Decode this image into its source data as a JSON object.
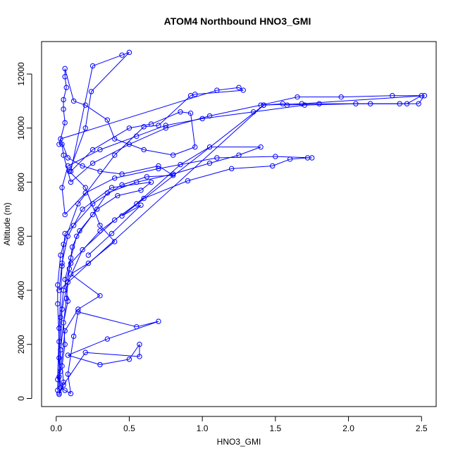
{
  "chart_data": {
    "type": "scatter",
    "title": "ATOM4 Northbound HNO3_GMI",
    "xlabel": "HNO3_GMI",
    "ylabel": "Altitude (m)",
    "xlim": [
      -0.1,
      2.6
    ],
    "ylim": [
      -300,
      13200
    ],
    "xticks": [
      0.0,
      0.5,
      1.0,
      1.5,
      2.0,
      2.5
    ],
    "xtick_labels": [
      "0.0",
      "0.5",
      "1.0",
      "1.5",
      "2.0",
      "2.5"
    ],
    "yticks": [
      0,
      2000,
      4000,
      6000,
      8000,
      10000,
      12000
    ],
    "ytick_labels": [
      "0",
      "2000",
      "4000",
      "6000",
      "8000",
      "10000",
      "12000"
    ],
    "grid": false,
    "marker": "open-circle",
    "line_style": "connected",
    "series": [
      {
        "color": "#0000ff",
        "points": [
          [
            0.02,
            200
          ],
          [
            0.05,
            600
          ],
          [
            0.04,
            1200
          ],
          [
            0.06,
            2000
          ],
          [
            0.05,
            2800
          ],
          [
            0.08,
            3600
          ],
          [
            0.06,
            4400
          ],
          [
            0.1,
            5200
          ],
          [
            0.14,
            6000
          ],
          [
            0.25,
            6800
          ],
          [
            0.35,
            7600
          ],
          [
            0.55,
            8000
          ],
          [
            0.8,
            8300
          ],
          [
            1.05,
            8700
          ],
          [
            1.25,
            9000
          ],
          [
            1.4,
            9300
          ],
          [
            1.05,
            9300
          ],
          [
            0.85,
            8650
          ],
          [
            0.55,
            7200
          ],
          [
            0.3,
            6200
          ],
          [
            0.1,
            5000
          ],
          [
            0.05,
            4000
          ],
          [
            0.03,
            3000
          ],
          [
            0.02,
            1500
          ],
          [
            0.03,
            400
          ],
          [
            0.06,
            300
          ],
          [
            0.1,
            180
          ],
          [
            0.08,
            900
          ],
          [
            0.12,
            2300
          ],
          [
            0.15,
            3200
          ],
          [
            0.55,
            2650
          ],
          [
            0.7,
            2850
          ],
          [
            0.35,
            2200
          ],
          [
            0.08,
            1600
          ],
          [
            0.3,
            1250
          ],
          [
            0.5,
            1450
          ],
          [
            0.57,
            2000
          ],
          [
            0.57,
            1550
          ],
          [
            0.2,
            1700
          ],
          [
            0.05,
            500
          ],
          [
            0.02,
            150
          ],
          [
            0.04,
            3300
          ],
          [
            0.08,
            4300
          ],
          [
            0.18,
            5500
          ],
          [
            0.4,
            6600
          ],
          [
            0.6,
            7400
          ],
          [
            0.9,
            8050
          ],
          [
            1.2,
            8500
          ],
          [
            1.48,
            8600
          ],
          [
            1.6,
            8850
          ],
          [
            1.72,
            8900
          ],
          [
            1.75,
            8900
          ],
          [
            1.5,
            8950
          ],
          [
            1.1,
            8900
          ],
          [
            0.7,
            8500
          ],
          [
            0.4,
            8150
          ],
          [
            0.2,
            7600
          ],
          [
            0.06,
            6800
          ],
          [
            0.04,
            7800
          ],
          [
            0.08,
            8600
          ],
          [
            0.3,
            9200
          ],
          [
            0.55,
            9700
          ],
          [
            0.75,
            10100
          ],
          [
            1.0,
            10350
          ],
          [
            1.35,
            10600
          ],
          [
            1.7,
            10850
          ],
          [
            2.05,
            10900
          ],
          [
            2.4,
            10900
          ],
          [
            2.5,
            11200
          ],
          [
            2.3,
            11200
          ],
          [
            1.95,
            11150
          ],
          [
            1.65,
            11150
          ],
          [
            1.4,
            10850
          ],
          [
            1.05,
            10450
          ],
          [
            0.75,
            10000
          ],
          [
            0.5,
            9400
          ],
          [
            0.25,
            8700
          ],
          [
            0.1,
            8000
          ],
          [
            0.05,
            9000
          ],
          [
            0.04,
            9400
          ],
          [
            0.02,
            9400
          ],
          [
            0.06,
            10200
          ],
          [
            0.05,
            10700
          ],
          [
            0.05,
            11050
          ],
          [
            0.07,
            11500
          ],
          [
            0.06,
            11900
          ],
          [
            0.06,
            12200
          ],
          [
            0.12,
            11000
          ],
          [
            0.2,
            10850
          ],
          [
            0.35,
            10300
          ],
          [
            0.4,
            9600
          ],
          [
            0.6,
            9200
          ],
          [
            0.8,
            9000
          ],
          [
            0.95,
            9300
          ],
          [
            0.92,
            10550
          ],
          [
            0.85,
            10600
          ],
          [
            0.65,
            10150
          ],
          [
            0.5,
            10000
          ],
          [
            0.25,
            9200
          ],
          [
            0.1,
            8400
          ],
          [
            0.25,
            12300
          ],
          [
            0.45,
            12700
          ],
          [
            0.5,
            12800
          ],
          [
            0.24,
            11350
          ],
          [
            0.2,
            10000
          ],
          [
            0.09,
            8400
          ],
          [
            0.2,
            7800
          ],
          [
            0.3,
            6400
          ],
          [
            0.4,
            5800
          ],
          [
            0.22,
            5000
          ],
          [
            0.1,
            4600
          ],
          [
            0.3,
            3800
          ],
          [
            0.15,
            3300
          ],
          [
            0.06,
            2500
          ],
          [
            0.03,
            1000
          ],
          [
            0.01,
            700
          ],
          [
            0.02,
            2600
          ],
          [
            0.04,
            4900
          ],
          [
            0.06,
            6100
          ],
          [
            0.12,
            6400
          ],
          [
            0.25,
            7200
          ],
          [
            0.45,
            7900
          ],
          [
            0.62,
            8200
          ],
          [
            0.8,
            8250
          ],
          [
            0.7,
            8600
          ],
          [
            0.45,
            8300
          ],
          [
            0.3,
            8400
          ],
          [
            0.18,
            8600
          ],
          [
            0.08,
            8900
          ],
          [
            0.03,
            9600
          ],
          [
            1.1,
            11400
          ],
          [
            1.25,
            11500
          ],
          [
            1.28,
            11400
          ],
          [
            0.95,
            11250
          ],
          [
            0.92,
            11200
          ],
          [
            0.7,
            10100
          ],
          [
            0.6,
            10050
          ],
          [
            0.4,
            9000
          ],
          [
            0.15,
            7200
          ],
          [
            0.05,
            5700
          ],
          [
            0.03,
            5300
          ],
          [
            0.01,
            4200
          ],
          [
            0.01,
            3500
          ],
          [
            0.02,
            2100
          ],
          [
            0.01,
            300
          ],
          [
            0.02,
            800
          ],
          [
            0.03,
            1800
          ],
          [
            0.07,
            3700
          ],
          [
            0.09,
            4800
          ],
          [
            0.11,
            5600
          ],
          [
            0.16,
            6200
          ],
          [
            0.28,
            7000
          ],
          [
            0.42,
            7500
          ],
          [
            0.58,
            7700
          ],
          [
            0.65,
            8000
          ],
          [
            0.38,
            7800
          ],
          [
            0.18,
            7000
          ],
          [
            0.08,
            6000
          ],
          [
            0.04,
            5000
          ],
          [
            0.02,
            4000
          ],
          [
            1.42,
            10850
          ],
          [
            1.55,
            10900
          ],
          [
            1.58,
            10850
          ],
          [
            1.8,
            10900
          ],
          [
            2.15,
            10900
          ],
          [
            2.35,
            10900
          ],
          [
            2.48,
            10900
          ],
          [
            2.52,
            11200
          ],
          [
            1.68,
            10900
          ],
          [
            1.42,
            10850
          ],
          [
            0.45,
            6750
          ],
          [
            0.58,
            7150
          ],
          [
            0.38,
            6100
          ],
          [
            0.22,
            5300
          ]
        ]
      }
    ]
  }
}
